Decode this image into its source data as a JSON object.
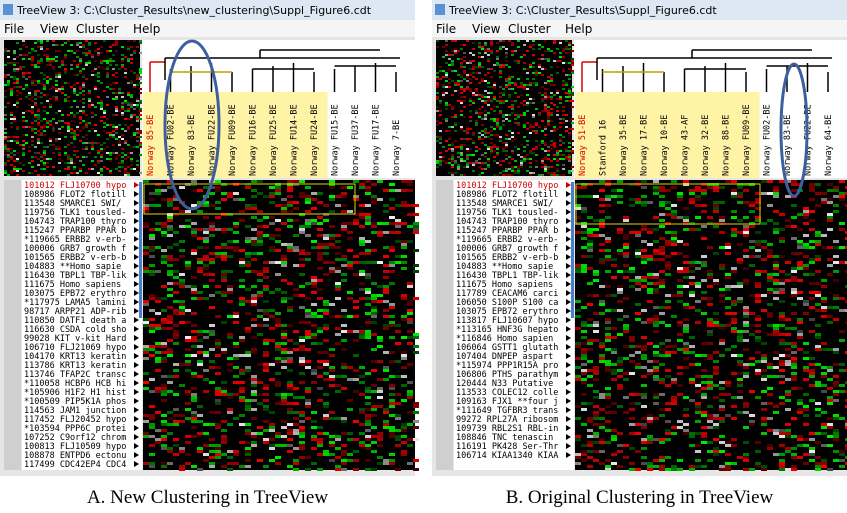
{
  "panels": [
    {
      "window_title": "TreeView 3: C:\\Cluster_Results\\new_clustering\\Suppl_Figure6.cdt",
      "menu": [
        "File",
        "View",
        "Cluster",
        "Help"
      ],
      "columns": [
        "Norway 85-BE",
        "Norway FU02-BE",
        "Norway 83-BE",
        "Norway FU22-BE",
        "Norway FU09-BE",
        "Norway FU16-BE",
        "Norway FU25-BE",
        "Norway FU14-BE",
        "Norway FU24-BE",
        "Norway FU15-BE",
        "Norway FU37-BE",
        "Norway FU17-BE",
        "Norway 7-BE"
      ],
      "genes": [
        "101012 FLJ10700 hypo",
        "108986 FLOT2 flotill",
        "113548 SMARCE1 SWI/",
        "119756 TLK1 tousled-",
        "104743 TRAP100 thyro",
        "115247 PPARBP PPAR b",
        "*119665 ERBB2 v-erb-",
        "100006 GRB7 growth f",
        "101565 ERBB2 v-erb-b",
        "104883  **Homo sapie",
        "116430 TBPL1 TBP-lik",
        "111675  Homo sapiens",
        "103075 EPB72 erythro",
        "*117975 LAMA5 lamini",
        "98717 ARPP21 ADP-rib",
        "110850 DATF1 death a",
        "116630 CSDA cold sho",
        "99028 KIT v-kit Hard",
        "106710 FLJ21069 hypo",
        "104170 KRT13 keratin",
        "113786 KRT13 keratin",
        "113746 TFAP2C transc",
        "*110058 HCBP6 HCB hi",
        "*105906 H1F2 H1 hist",
        "*100509 PIP5K1A phos",
        "114563 JAM1 junction",
        "117452 FLJ20452 hypo",
        "*103594 PPP6C protei",
        "107252 C9orf12 chrom",
        "100813 FLJ10509 hypo",
        "108878 ENTPD6 ectonu",
        "117499 CDC42EP4 CDC4"
      ],
      "caption": "A. New Clustering in TreeView"
    },
    {
      "window_title": "TreeView 3: C:\\Cluster_Results\\Suppl_Figure6.cdt",
      "menu": [
        "File",
        "View",
        "Cluster",
        "Help"
      ],
      "columns": [
        "Norway 51-BE",
        "Stanford 16",
        "Norway 35-BE",
        "Norway 17-BE",
        "Norway 10-BE",
        "Norway 43-AF",
        "Norway 32-BE",
        "Norway 88-BE",
        "Norway FU09-BE",
        "Norway FU02-BE",
        "Norway 83-BE",
        "Norway FU22-BE",
        "Norway 64-BE"
      ],
      "genes": [
        "101012 FLJ10700 hypo",
        "108986 FLOT2 flotill",
        "113548 SMARCE1 SWI/",
        "119756 TLK1 tousled-",
        "104743 TRAP100 thyro",
        "115247 PPARBP PPAR b",
        "*119665 ERBB2 v-erb-",
        "100006 GRB7 growth f",
        "101565 ERBB2 v-erb-b",
        "104883  **Homo sapie",
        "116430 TBPL1 TBP-lik",
        "111675  Homo sapiens",
        "117789 CEACAM6 carci",
        "106050 S100P S100 ca",
        "103075 EPB72 erythro",
        "113817 FLJ10607 hypo",
        "*113165 HNF3G hepato",
        "*116846  Homo sapien",
        "106064 GSTT1 glutath",
        "107404 DNPEP aspart",
        "*115974 PPP1R15A pro",
        "106806 PTHS parathym",
        "120444 N33 Putative",
        "113533 COLEC12 colle",
        "109163 FJX1 **four j",
        "*111649 TGFBR3 trans",
        "99272 RPL27A ribosom",
        "109739 RBL2S1 RBL-in",
        "108846 TNC tenascin",
        "116191 PK428 Ser-Thr",
        "106714 KIAA1340 KIAA"
      ],
      "caption": "B. Original Clustering in TreeView"
    }
  ]
}
